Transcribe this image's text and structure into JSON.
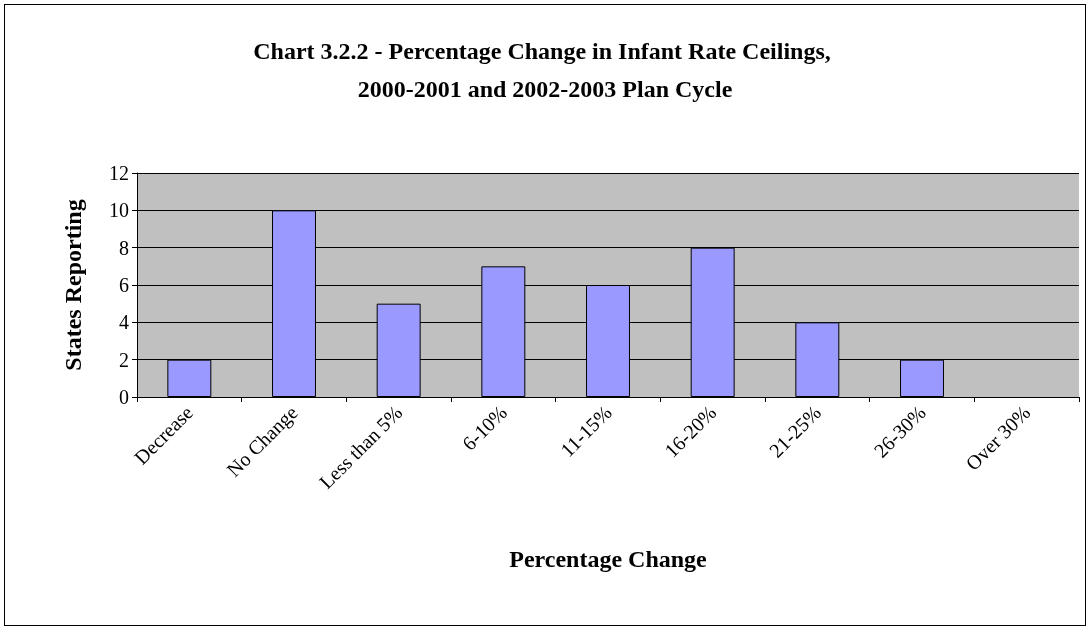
{
  "chart_data": {
    "type": "bar",
    "title": "Chart 3.2.2 - Percentage Change in Infant Rate Ceilings, 2000-2001 and 2002-2003 Plan Cycle",
    "xlabel": "Percentage Change",
    "ylabel": "States Reporting",
    "categories": [
      "Decrease",
      "No Change",
      "Less than 5%",
      "6-10%",
      "11-15%",
      "16-20%",
      "21-25%",
      "26-30%",
      "Over 30%"
    ],
    "values": [
      2,
      10,
      5,
      7,
      6,
      8,
      4,
      2,
      0
    ],
    "color": "#9999ff",
    "ylim": [
      0,
      12
    ],
    "yticks": [
      0,
      2,
      4,
      6,
      8,
      10,
      12
    ],
    "grid": "y"
  }
}
